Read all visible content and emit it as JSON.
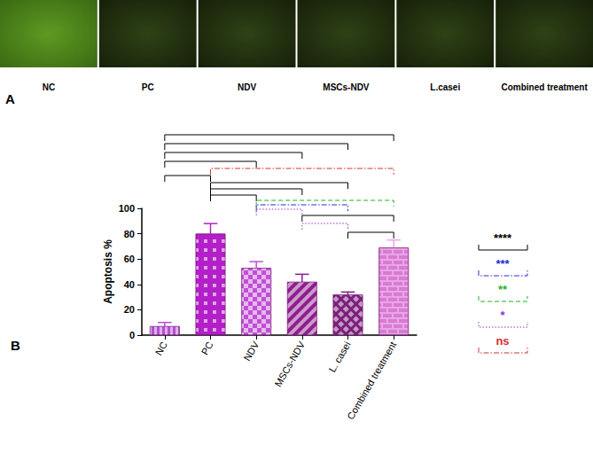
{
  "figure": {
    "panel_a": {
      "label": "A",
      "images": [
        "NC",
        "PC",
        "NDV",
        "MSCs-NDV",
        "L.casei",
        "Combined treatment"
      ]
    },
    "panel_b_label": "B"
  },
  "chart_data": {
    "type": "bar",
    "y_label": "Apoptosis %",
    "categories": [
      "NC",
      "PC",
      "NDV",
      "MSCs-NDV",
      "L. casei",
      "Combined treatment"
    ],
    "values": [
      7,
      80,
      53,
      42,
      32,
      69
    ],
    "errors": [
      3,
      8,
      5,
      6,
      2,
      6
    ],
    "colors": [
      "#b44fd2",
      "#b31fc9",
      "#c14fd6",
      "#8e1e8e",
      "#7b1f7b",
      "#e9a6e6"
    ],
    "ylim": [
      0,
      100
    ],
    "yticks": [
      0,
      20,
      40,
      60,
      80,
      100
    ],
    "grid": false,
    "significance_levels": [
      {
        "label": "****",
        "color": "#000000",
        "line_style": "solid"
      },
      {
        "label": "***",
        "color": "#2b2bd6",
        "line_style": "dashdot"
      },
      {
        "label": "**",
        "color": "#1fb51f",
        "line_style": "dashed"
      },
      {
        "label": "*",
        "color": "#9b2fc4",
        "line_style": "dotted"
      },
      {
        "label": "ns",
        "color": "#d63030",
        "line_style": "dashdot"
      }
    ],
    "comparisons": [
      {
        "pair": [
          "NC",
          "Combined treatment"
        ],
        "level": "****"
      },
      {
        "pair": [
          "NC",
          "L. casei"
        ],
        "level": "****"
      },
      {
        "pair": [
          "NC",
          "MSCs-NDV"
        ],
        "level": "****"
      },
      {
        "pair": [
          "NC",
          "NDV"
        ],
        "level": "****"
      },
      {
        "pair": [
          "PC",
          "Combined treatment"
        ],
        "level": "ns"
      },
      {
        "pair": [
          "NC",
          "PC"
        ],
        "level": "****"
      },
      {
        "pair": [
          "PC",
          "L. casei"
        ],
        "level": "****"
      },
      {
        "pair": [
          "PC",
          "MSCs-NDV"
        ],
        "level": "****"
      },
      {
        "pair": [
          "PC",
          "NDV"
        ],
        "level": "****"
      },
      {
        "pair": [
          "NDV",
          "Combined treatment"
        ],
        "level": "**"
      },
      {
        "pair": [
          "NDV",
          "L. casei"
        ],
        "level": "***"
      },
      {
        "pair": [
          "NDV",
          "MSCs-NDV"
        ],
        "level": "*"
      },
      {
        "pair": [
          "MSCs-NDV",
          "Combined treatment"
        ],
        "level": "****"
      },
      {
        "pair": [
          "MSCs-NDV",
          "L. casei"
        ],
        "level": "*"
      },
      {
        "pair": [
          "L. casei",
          "Combined treatment"
        ],
        "level": "****"
      }
    ]
  }
}
